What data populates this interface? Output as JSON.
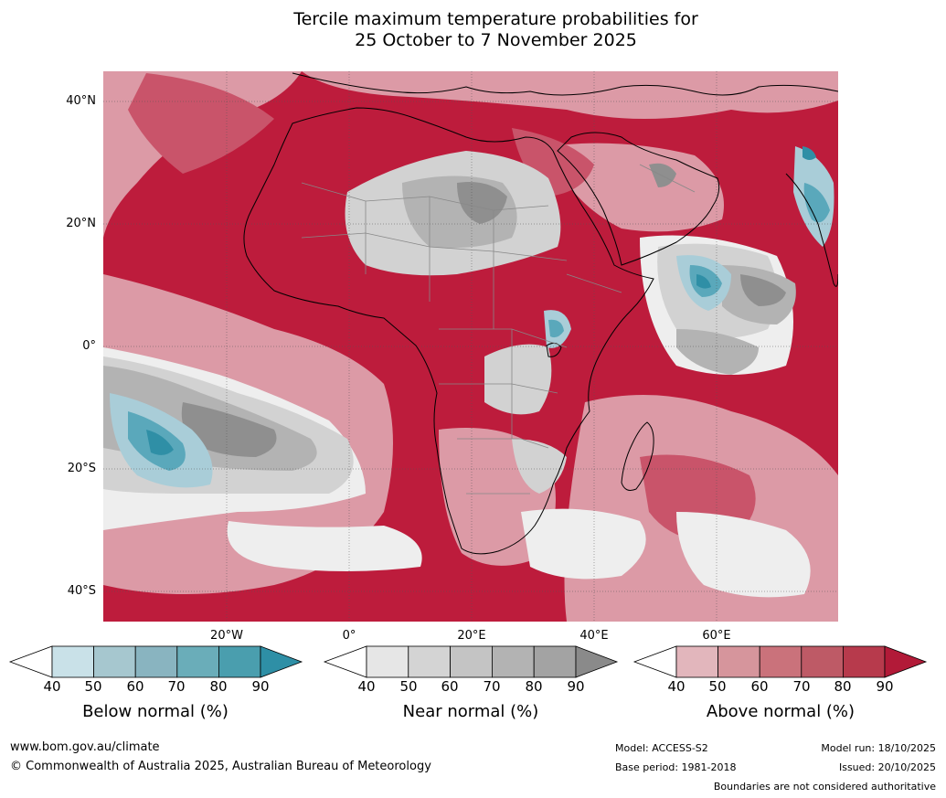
{
  "title": {
    "line1": "Tercile maximum temperature probabilities for",
    "line2": "25 October to 7 November 2025"
  },
  "map": {
    "lat_labels": [
      "40°N",
      "20°N",
      "0°",
      "20°S",
      "40°S"
    ],
    "lon_labels": [
      "20°W",
      "0°",
      "20°E",
      "40°E",
      "60°E"
    ],
    "colors": {
      "ocean_base": "#bd1c3c",
      "above_90": "#b71c3a",
      "above_70": "#c9546a",
      "above_50": "#dc9aa6",
      "near_white": "#eeeeee",
      "near_light": "#d2d2d2",
      "near_mid": "#b3b3b3",
      "near_dark": "#8f8f8f",
      "below_light": "#a9cdd8",
      "below_mid": "#5aa8bb",
      "below_dark": "#2f8fa6",
      "coast": "#000000",
      "border": "#888888"
    }
  },
  "colorbars": [
    {
      "title": "Below normal (%)",
      "ticks": [
        "40",
        "50",
        "60",
        "70",
        "80",
        "90"
      ],
      "colors": [
        "#ffffff",
        "#c9e1e8",
        "#a6c7cf",
        "#89b4c0",
        "#6aadb9",
        "#4a9eae",
        "#2e8fa6"
      ]
    },
    {
      "title": "Near normal (%)",
      "ticks": [
        "40",
        "50",
        "60",
        "70",
        "80",
        "90"
      ],
      "colors": [
        "#ffffff",
        "#e6e6e6",
        "#d4d4d4",
        "#c4c4c4",
        "#b3b3b3",
        "#a3a3a3",
        "#8a8a8a"
      ]
    },
    {
      "title": "Above normal (%)",
      "ticks": [
        "40",
        "50",
        "60",
        "70",
        "80",
        "90"
      ],
      "colors": [
        "#ffffff",
        "#e2b6bc",
        "#d6959c",
        "#ca727b",
        "#be5a66",
        "#b73a4c",
        "#b21a38"
      ]
    }
  ],
  "footer": {
    "url": "www.bom.gov.au/climate",
    "copyright": "© Commonwealth of Australia 2025, Australian Bureau of Meteorology",
    "model": "Model: ACCESS-S2",
    "base_period": "Base period: 1981-2018",
    "model_run": "Model run: 18/10/2025",
    "issued": "Issued: 20/10/2025",
    "boundaries": "Boundaries are not considered authoritative"
  }
}
